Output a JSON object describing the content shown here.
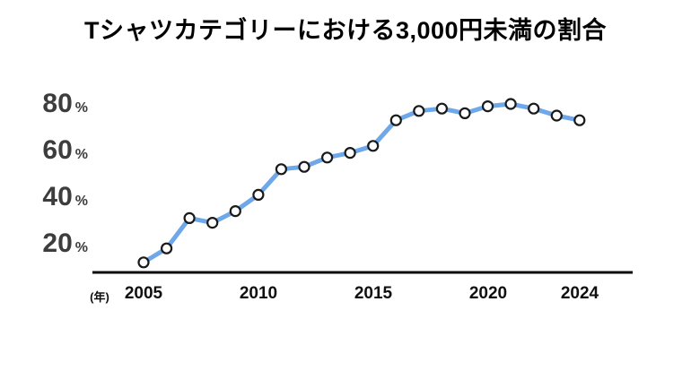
{
  "title": "Tシャツカテゴリーにおける3,000円未満の割合",
  "colors": {
    "line": "#6FA8E8",
    "marker_fill": "#FFFFFF",
    "marker_stroke": "#1A1A1A",
    "axis": "#0A0A0A",
    "y_tick_text": "#3D3D3D",
    "x_tick_text": "#0F0F0F",
    "background": "#FFFFFF"
  },
  "y_axis": {
    "ticks": [
      {
        "value": 80,
        "label": "80",
        "unit": "%"
      },
      {
        "value": 60,
        "label": "60",
        "unit": "%"
      },
      {
        "value": 40,
        "label": "40",
        "unit": "%"
      },
      {
        "value": 20,
        "label": "20",
        "unit": "%"
      }
    ]
  },
  "x_axis": {
    "unit_label": "(年)",
    "ticks": [
      {
        "value": 2005,
        "label": "2005"
      },
      {
        "value": 2010,
        "label": "2010"
      },
      {
        "value": 2015,
        "label": "2015"
      },
      {
        "value": 2020,
        "label": "2020"
      },
      {
        "value": 2024,
        "label": "2024"
      }
    ]
  },
  "chart_data": {
    "type": "line",
    "title": "Tシャツカテゴリーにおける3,000円未満の割合",
    "x": [
      2005,
      2006,
      2007,
      2008,
      2009,
      2010,
      2011,
      2012,
      2013,
      2014,
      2015,
      2016,
      2017,
      2018,
      2019,
      2020,
      2021,
      2022,
      2023,
      2024
    ],
    "values": [
      12,
      18,
      31,
      29,
      34,
      41,
      52,
      53,
      57,
      59,
      62,
      73,
      77,
      78,
      76,
      79,
      80,
      78,
      75,
      73
    ],
    "xlabel": "年",
    "ylabel": "%",
    "ylim": [
      8,
      88
    ],
    "xlim": [
      2002.8,
      2026.3
    ],
    "y_ticks": [
      20,
      40,
      60,
      80
    ],
    "x_ticks": [
      2005,
      2010,
      2015,
      2020,
      2024
    ],
    "grid": false,
    "legend": false,
    "line_color": "#6FA8E8",
    "marker": "open-circle"
  }
}
